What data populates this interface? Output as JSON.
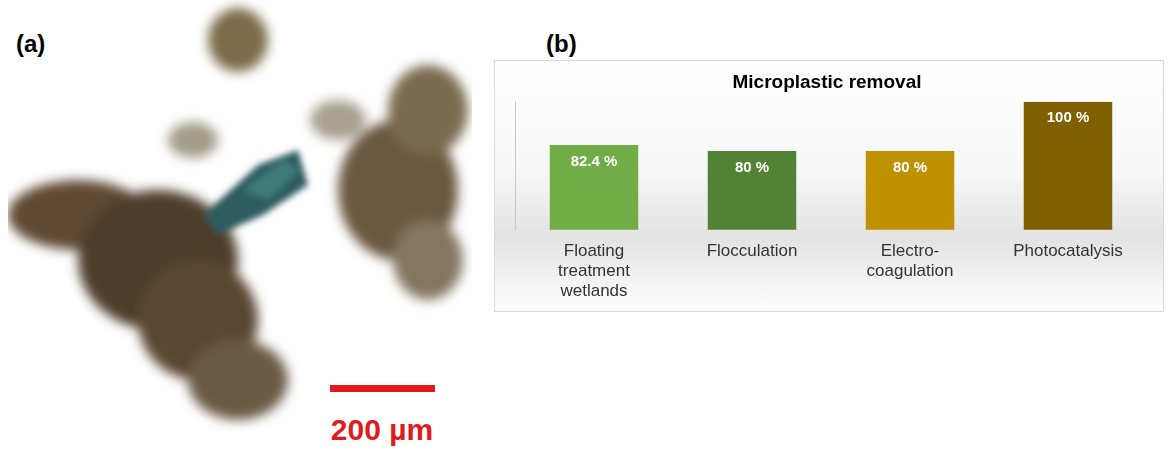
{
  "panels": {
    "a": {
      "label": "(a)",
      "scale_bar": "200 µm"
    },
    "b": {
      "label": "(b)"
    }
  },
  "chart_data": {
    "type": "bar",
    "title": "Microplastic removal",
    "categories": [
      "Floating treatment wetlands",
      "Flocculation",
      "Electro-coagulation",
      "Photocatalysis"
    ],
    "values": [
      82.4,
      80,
      80,
      100
    ],
    "value_labels": [
      "82.4 %",
      "80 %",
      "80 %",
      "100 %"
    ],
    "colors": [
      "#70ad47",
      "#548235",
      "#bf9000",
      "#7f6000"
    ],
    "ylim": [
      48,
      100
    ],
    "grid": false,
    "data_labels": true,
    "tick_labels": "x"
  }
}
